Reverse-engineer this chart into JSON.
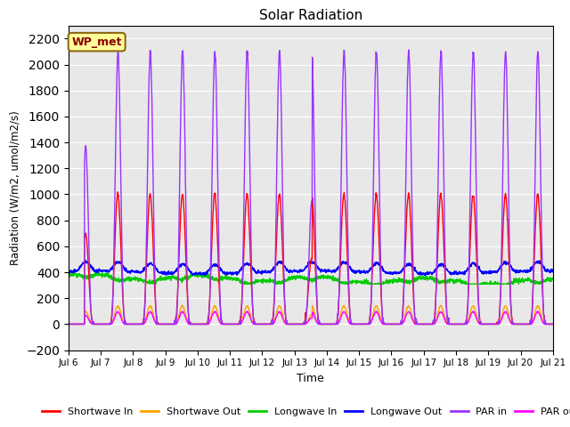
{
  "title": "Solar Radiation",
  "ylabel": "Radiation (W/m2, umol/m2/s)",
  "xlabel": "Time",
  "ylim": [
    -200,
    2300
  ],
  "yticks": [
    -200,
    0,
    200,
    400,
    600,
    800,
    1000,
    1200,
    1400,
    1600,
    1800,
    2000,
    2200
  ],
  "xtick_labels": [
    "Jul 6",
    "Jul 7",
    "Jul 8",
    "Jul 9",
    "Jul 10",
    "Jul 11",
    "Jul 12",
    "Jul 13",
    "Jul 14",
    "Jul 15",
    "Jul 16",
    "Jul 17",
    "Jul 18",
    "Jul 19",
    "Jul 20",
    "Jul 21"
  ],
  "annotation_text": "WP_met",
  "annotation_box_color": "#FFFF99",
  "annotation_box_edge": "#8B6914",
  "bg_color": "#E8E8E8",
  "colors": {
    "shortwave_in": "#FF0000",
    "shortwave_out": "#FFA500",
    "longwave_in": "#00CC00",
    "longwave_out": "#0000FF",
    "par_in": "#9933FF",
    "par_out": "#FF00FF"
  },
  "legend": [
    {
      "label": "Shortwave In",
      "color": "#FF0000"
    },
    {
      "label": "Shortwave Out",
      "color": "#FFA500"
    },
    {
      "label": "Longwave In",
      "color": "#00CC00"
    },
    {
      "label": "Longwave Out",
      "color": "#0000FF"
    },
    {
      "label": "PAR in",
      "color": "#9933FF"
    },
    {
      "label": "PAR out",
      "color": "#FF00FF"
    }
  ],
  "n_days": 15,
  "day_start": 6
}
